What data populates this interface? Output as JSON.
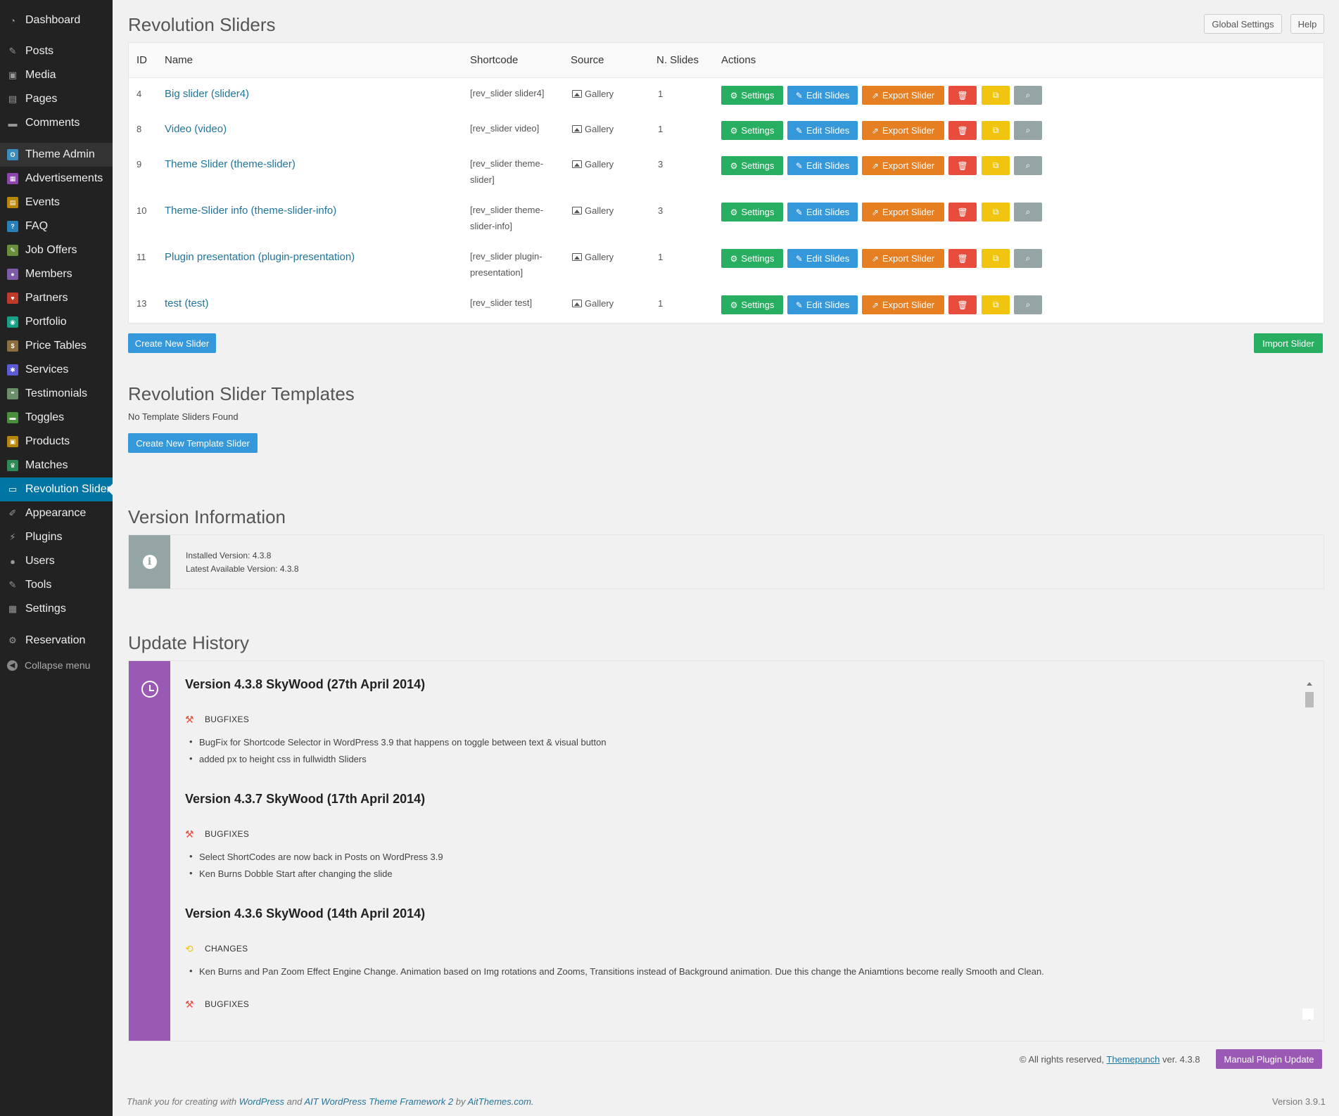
{
  "sidebar": {
    "items": [
      {
        "label": "Dashboard",
        "icon": "dashboard-icon",
        "glyph": "◔"
      },
      {
        "label": "Posts",
        "icon": "pushpin-icon",
        "glyph": "✎"
      },
      {
        "label": "Media",
        "icon": "media-icon",
        "glyph": "▣"
      },
      {
        "label": "Pages",
        "icon": "pages-icon",
        "glyph": "▤"
      },
      {
        "label": "Comments",
        "icon": "comments-icon",
        "glyph": "▬"
      },
      {
        "label": "Theme Admin",
        "icon": "theme-admin-icon",
        "glyph": "O"
      },
      {
        "label": "Advertisements",
        "icon": "advertisements-icon",
        "glyph": "▦"
      },
      {
        "label": "Events",
        "icon": "events-icon",
        "glyph": "▤"
      },
      {
        "label": "FAQ",
        "icon": "faq-icon",
        "glyph": "?"
      },
      {
        "label": "Job Offers",
        "icon": "job-offers-icon",
        "glyph": "✎"
      },
      {
        "label": "Members",
        "icon": "members-icon",
        "glyph": "●"
      },
      {
        "label": "Partners",
        "icon": "partners-icon",
        "glyph": "♥"
      },
      {
        "label": "Portfolio",
        "icon": "portfolio-icon",
        "glyph": "◉"
      },
      {
        "label": "Price Tables",
        "icon": "price-tables-icon",
        "glyph": "$"
      },
      {
        "label": "Services",
        "icon": "services-icon",
        "glyph": "✱"
      },
      {
        "label": "Testimonials",
        "icon": "testimonials-icon",
        "glyph": "❝"
      },
      {
        "label": "Toggles",
        "icon": "toggles-icon",
        "glyph": "▬"
      },
      {
        "label": "Products",
        "icon": "products-icon",
        "glyph": "▣"
      },
      {
        "label": "Matches",
        "icon": "matches-icon",
        "glyph": "♛"
      },
      {
        "label": "Revolution Slider",
        "icon": "revolution-slider-icon",
        "glyph": "▭"
      },
      {
        "label": "Appearance",
        "icon": "appearance-icon",
        "glyph": "✐"
      },
      {
        "label": "Plugins",
        "icon": "plugins-icon",
        "glyph": "⚡"
      },
      {
        "label": "Users",
        "icon": "users-icon",
        "glyph": "●"
      },
      {
        "label": "Tools",
        "icon": "tools-icon",
        "glyph": "✎"
      },
      {
        "label": "Settings",
        "icon": "settings-icon",
        "glyph": "▦"
      },
      {
        "label": "Reservation",
        "icon": "reservation-gear-icon",
        "glyph": "⚙"
      },
      {
        "label": "Collapse menu",
        "icon": "collapse-icon",
        "glyph": "◀"
      }
    ],
    "icon_colors": {
      "Theme Admin": "#3b8dbd",
      "Advertisements": "#8e44ad",
      "Events": "#b8860b",
      "FAQ": "#2980b9",
      "Job Offers": "#6a8f3b",
      "Members": "#7d5ba6",
      "Partners": "#c0392b",
      "Portfolio": "#16a085",
      "Price Tables": "#8d6e3f",
      "Services": "#5b5bd6",
      "Testimonials": "#6b8e6b",
      "Toggles": "#4a8f3b",
      "Products": "#b8860b",
      "Matches": "#2e8b57"
    }
  },
  "header": {
    "title": "Revolution Sliders",
    "global_settings": "Global Settings",
    "help": "Help"
  },
  "table": {
    "columns": [
      "ID",
      "Name",
      "Shortcode",
      "Source",
      "N. Slides",
      "Actions"
    ],
    "rows": [
      {
        "id": "4",
        "name": "Big slider (slider4)",
        "shortcode": "[rev_slider slider4]",
        "source": "Gallery",
        "slides": "1"
      },
      {
        "id": "8",
        "name": "Video (video)",
        "shortcode": "[rev_slider video]",
        "source": "Gallery",
        "slides": "1"
      },
      {
        "id": "9",
        "name": "Theme Slider (theme-slider)",
        "shortcode": "[rev_slider theme-slider]",
        "source": "Gallery",
        "slides": "3"
      },
      {
        "id": "10",
        "name": "Theme-Slider info (theme-slider-info)",
        "shortcode": "[rev_slider theme-slider-info]",
        "source": "Gallery",
        "slides": "3"
      },
      {
        "id": "11",
        "name": "Plugin presentation (plugin-presentation)",
        "shortcode": "[rev_slider plugin-presentation]",
        "source": "Gallery",
        "slides": "1"
      },
      {
        "id": "13",
        "name": "test (test)",
        "shortcode": "[rev_slider test]",
        "source": "Gallery",
        "slides": "1"
      }
    ],
    "actions": {
      "settings": "Settings",
      "edit_slides": "Edit Slides",
      "export_slider": "Export Slider"
    }
  },
  "buttons": {
    "create_new_slider": "Create New Slider",
    "import_slider": "Import Slider",
    "create_new_template_slider": "Create New Template Slider",
    "manual_plugin_update": "Manual Plugin Update"
  },
  "templates": {
    "title": "Revolution Slider Templates",
    "empty": "No Template Sliders Found"
  },
  "version_info": {
    "title": "Version Information",
    "installed": "Installed Version: 4.3.8",
    "latest": "Latest Available Version: 4.3.8"
  },
  "update_history": {
    "title": "Update History",
    "versions": [
      {
        "title": "Version 4.3.8 SkyWood (27th April 2014)",
        "category": "BUGFIXES",
        "items": [
          "BugFix for Shortcode Selector in WordPress 3.9 that happens on toggle between text & visual button",
          "added px to height css in fullwidth Sliders"
        ]
      },
      {
        "title": "Version 4.3.7 SkyWood (17th April 2014)",
        "category": "BUGFIXES",
        "items": [
          "Select ShortCodes are now back in Posts on WordPress 3.9",
          "Ken Burns Dobble Start after changing the slide"
        ]
      },
      {
        "title": "Version 4.3.6 SkyWood (14th April 2014)",
        "category": "CHANGES",
        "items": [
          "Ken Burns and Pan Zoom Effect Engine Change. Animation based on Img rotations and Zooms, Transitions instead of Background animation. Due this change the Aniamtions become really Smooth and Clean."
        ],
        "next_category": "BUGFIXES"
      }
    ]
  },
  "footer": {
    "rights": "© All rights reserved,",
    "company": "Themepunch",
    "version": "ver. 4.3.8",
    "thanks_pre": "Thank you for creating with",
    "wp": "WordPress",
    "and": "and",
    "ait": "AIT WordPress Theme Framework 2",
    "by": "by",
    "ait_site": "AitThemes.com.",
    "wp_version": "Version 3.9.1"
  },
  "colors": {
    "sidebar_bg": "#222222",
    "active_menu": "#0074a2",
    "green": "#27ae60",
    "blue": "#3498db",
    "orange": "#e67e22",
    "red": "#e74c3c",
    "yellow": "#f1c40f",
    "grey": "#95a5a6",
    "purple": "#9b59b6",
    "link": "#21759b"
  }
}
